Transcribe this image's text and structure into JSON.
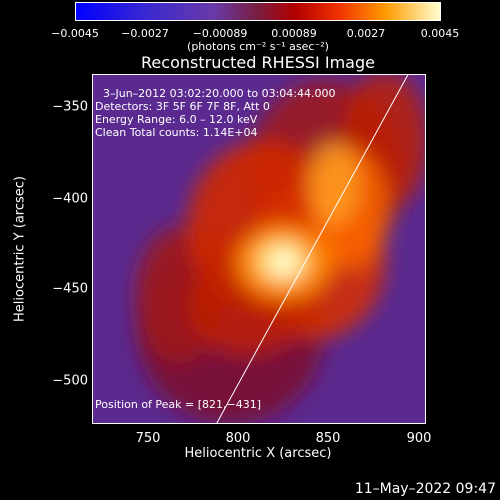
{
  "chart_data": {
    "type": "heatmap",
    "title": "Reconstructed RHESSI Image",
    "xlabel": "Heliocentric X (arcsec)",
    "ylabel": "Heliocentric Y (arcsec)",
    "xlim": [
      710,
      903
    ],
    "ylim": [
      -524,
      -322
    ],
    "x_ticks": [
      "750",
      "800",
      "850",
      "900"
    ],
    "x_tick_values": [
      750,
      800,
      850,
      900
    ],
    "y_ticks": [
      "−350",
      "−400",
      "−450",
      "−500"
    ],
    "y_tick_values": [
      -350,
      -400,
      -450,
      -500
    ],
    "colorbar": {
      "ticks": [
        "−0.0045",
        "−0.0027",
        "−0.00089",
        "0.00089",
        "0.0027",
        "0.0045"
      ],
      "range": [
        -0.0045,
        0.0045
      ],
      "unit_label": "(photons cm⁻² s⁻¹ asec⁻²)"
    },
    "annotations": {
      "time_range": "3–Jun–2012 03:02:20.000 to 03:04:44.000",
      "detectors": "Detectors: 3F 5F 6F 7F 8F, Att 0",
      "energy": "Energy Range: 6.0 – 12.0 keV",
      "clean": "Clean    Total counts: 1.14E+04",
      "peak": "Position of Peak = [821,−431]"
    },
    "peak_position": [
      821,
      -431
    ],
    "limb_line": [
      [
        782,
        -524
      ],
      [
        893,
        -322
      ]
    ],
    "colors": {
      "background": "#000000",
      "text": "#ffffff"
    }
  },
  "footer": {
    "date": "11–May–2022 09:47"
  }
}
